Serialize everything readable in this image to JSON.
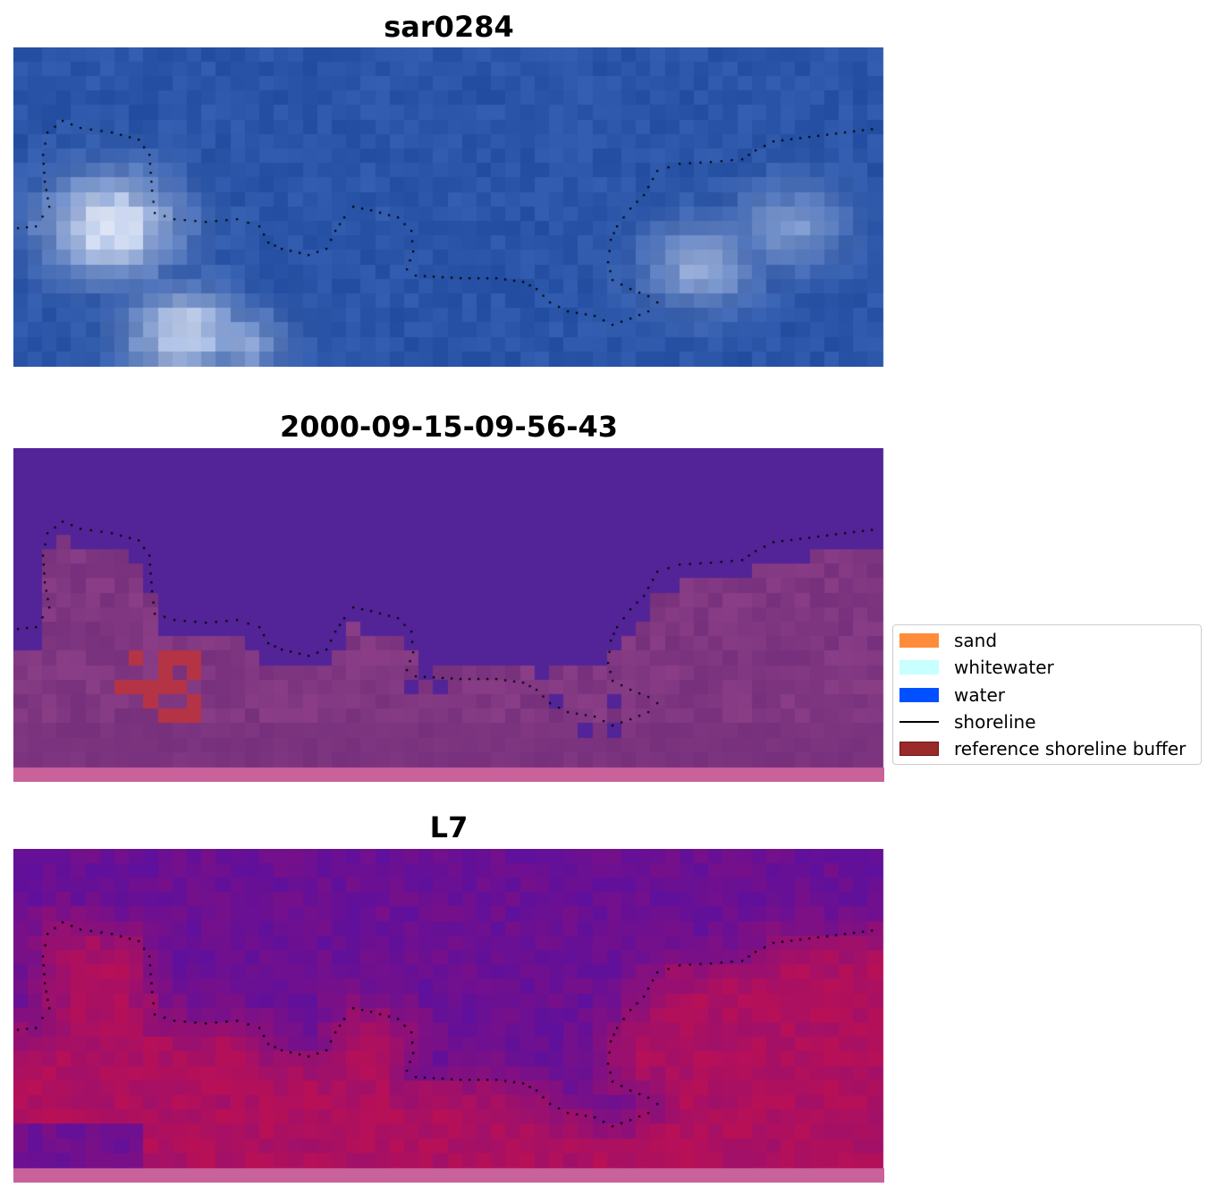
{
  "panels": [
    {
      "title": "sar0284",
      "style": "rgb"
    },
    {
      "title": "2000-09-15-09-56-43",
      "style": "classified"
    },
    {
      "title": "L7",
      "style": "index"
    }
  ],
  "legend": {
    "items": [
      {
        "label": "sand",
        "color": "#ff8c3a",
        "kind": "patch"
      },
      {
        "label": "whitewater",
        "color": "#c8ffff",
        "kind": "patch"
      },
      {
        "label": "water",
        "color": "#0050ff",
        "kind": "patch"
      },
      {
        "label": "shoreline",
        "color": "#000000",
        "kind": "line"
      },
      {
        "label": "reference shoreline buffer",
        "color": "#9b2a2a",
        "kind": "patch"
      }
    ]
  },
  "colors": {
    "rgb_water": "#2a55a8",
    "rgb_whitewater": "#f2f6ff",
    "classified_water": "#522497",
    "classified_land": "#6e2a78",
    "index_water": "#5a10a0",
    "index_land": "#c8104a",
    "bottom_strip": "#c9629a",
    "shoreline_dots": "#000000"
  }
}
